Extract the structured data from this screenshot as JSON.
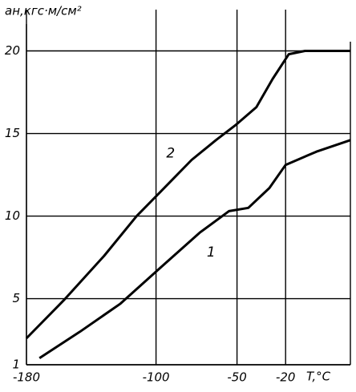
{
  "chart_data": {
    "type": "line",
    "x_label": "T,°C",
    "y_label": "aн,кгс·м/см²",
    "xlim": [
      -180,
      20
    ],
    "xticks": [
      -180,
      -100,
      -50,
      -20
    ],
    "ylim": [
      1,
      22.5
    ],
    "yticks": [
      1,
      5,
      10,
      15,
      20
    ],
    "grid": true,
    "series": [
      {
        "name": "1",
        "color": "#000000",
        "x": [
          -172,
          -147,
          -122,
          -97,
          -73,
          -55,
          -43,
          -30,
          -20,
          -1,
          20
        ],
        "values": [
          1.4,
          3,
          4.7,
          6.9,
          9,
          10.3,
          10.5,
          11.7,
          13.1,
          13.9,
          14.6
        ]
      },
      {
        "name": "2",
        "color": "#000000",
        "x": [
          -180,
          -157,
          -132,
          -112,
          -97,
          -78,
          -63,
          -51,
          -38,
          -28,
          -18,
          -8,
          20
        ],
        "values": [
          2.6,
          4.9,
          7.6,
          10,
          11.5,
          13.4,
          14.6,
          15.5,
          16.6,
          18.3,
          19.8,
          20,
          20
        ]
      }
    ]
  }
}
